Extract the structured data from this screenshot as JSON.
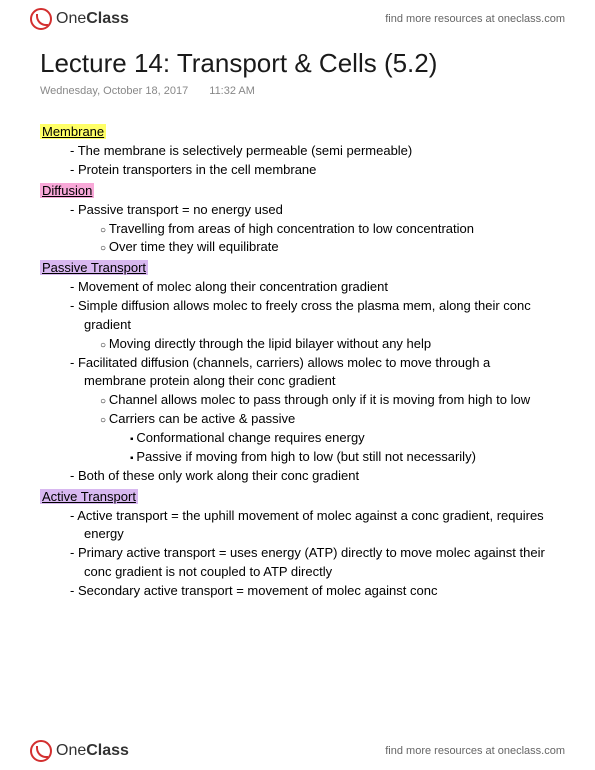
{
  "brand": {
    "name_part1": "One",
    "name_part2": "Class",
    "tagline": "find more resources at oneclass.com"
  },
  "doc": {
    "title": "Lecture 14: Transport & Cells (5.2)",
    "date": "Wednesday, October 18, 2017",
    "time": "11:32 AM"
  },
  "highlights": {
    "yellow_bg": "#ffff66",
    "pink_bg": "#f8a8d8",
    "purple_bg": "#d8b8f0"
  },
  "sections": {
    "membrane": {
      "heading": "Membrane",
      "b1": "The membrane is selectively permeable (semi permeable)",
      "b2": "Protein transporters in the cell membrane"
    },
    "diffusion": {
      "heading": "Diffusion",
      "b1": "Passive transport = no energy used",
      "b1a": "Travelling from areas of high concentration to low concentration",
      "b1b": "Over time they will equilibrate"
    },
    "passive": {
      "heading": "Passive Transport",
      "b1": "Movement of molec along their concentration gradient",
      "b2": "Simple diffusion allows molec to freely cross the plasma mem, along their conc gradient",
      "b2a": "Moving directly through the lipid bilayer without any help",
      "b3": "Facilitated diffusion (channels, carriers) allows molec to move through a membrane protein along their conc gradient",
      "b3a": "Channel allows molec to pass through only if it is moving from high to low",
      "b3b": "Carriers can be active & passive",
      "b3b1": "Conformational change requires energy",
      "b3b2": "Passive if moving from high to low (but still not necessarily)",
      "b4": "Both of these only work along their conc gradient"
    },
    "active": {
      "heading": "Active Transport",
      "b1": "Active transport = the uphill movement of molec against a conc gradient, requires energy",
      "b2": "Primary active transport = uses energy (ATP) directly to move molec against their conc gradient is not coupled to ATP directly",
      "b3": "Secondary active transport = movement of molec against conc"
    }
  }
}
